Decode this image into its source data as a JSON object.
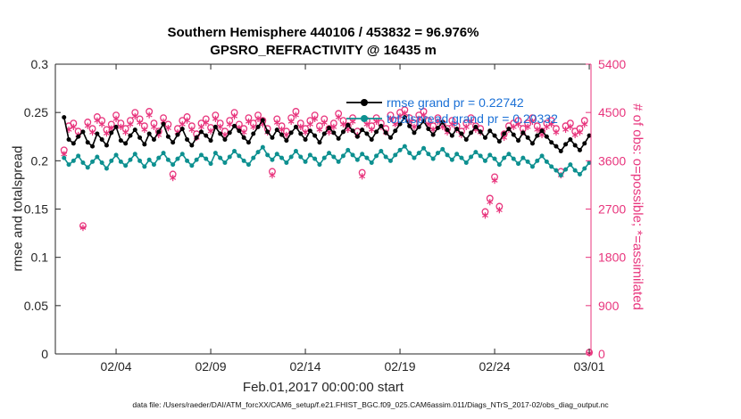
{
  "figure": {
    "title_line1": "Southern Hemisphere 440106 / 453832 = 96.976%",
    "title_line2": "GPSRO_REFRACTIVITY @ 16435 m",
    "caption": "data file: /Users/raeder/DAI/ATM_forcXX/CAM6_setup/f.e21.FHIST_BGC.f09_025.CAM6assim.011/Diags_NTrS_2017-02/obs_diag_output.nc"
  },
  "chart_data": {
    "type": "line",
    "title": "Southern Hemisphere 440106 / 453832 = 96.976%",
    "subtitle": "GPSRO_REFRACTIVITY @ 16435 m",
    "xlabel": "Feb.01,2017 00:00:00 start",
    "ylabel_left": "rmse and totalspread",
    "ylabel_right": "# of obs: o=possible; *=assimilated",
    "x_start_day": 0.25,
    "x_step_days": 0.25,
    "n_points": 112,
    "x_ticks": [
      {
        "day": 3,
        "label": "02/04"
      },
      {
        "day": 8,
        "label": "02/09"
      },
      {
        "day": 13,
        "label": "02/14"
      },
      {
        "day": 18,
        "label": "02/19"
      },
      {
        "day": 23,
        "label": "02/24"
      },
      {
        "day": 28,
        "label": "03/01"
      }
    ],
    "y_left": {
      "min": 0,
      "max": 0.3,
      "tick_values": [
        0,
        0.05,
        0.1,
        0.15,
        0.2,
        0.25,
        0.3
      ],
      "tick_labels": [
        "0",
        "0.05",
        "0.1",
        "0.15",
        "0.2",
        "0.25",
        "0.3"
      ]
    },
    "y_right": {
      "min": 0,
      "max": 5400,
      "tick_values": [
        0,
        900,
        1800,
        2700,
        3600,
        4500,
        5400
      ],
      "tick_labels": [
        "0",
        "900",
        "1800",
        "2700",
        "3600",
        "4500",
        "5400"
      ]
    },
    "legend_text_color": "#1a70d6",
    "legend": [
      {
        "label": "rmse grand pr = 0.22742",
        "color": "#000000"
      },
      {
        "label": "totalspread grand pr = 0.20332",
        "color": "#0d9090"
      }
    ],
    "series": [
      {
        "name": "rmse",
        "axis": "left",
        "color": "#000000",
        "marker": "dot",
        "values": [
          0.245,
          0.222,
          0.218,
          0.225,
          0.23,
          0.219,
          0.215,
          0.228,
          0.222,
          0.216,
          0.229,
          0.235,
          0.221,
          0.218,
          0.226,
          0.232,
          0.224,
          0.217,
          0.228,
          0.222,
          0.23,
          0.238,
          0.225,
          0.219,
          0.227,
          0.233,
          0.222,
          0.216,
          0.224,
          0.23,
          0.226,
          0.221,
          0.235,
          0.228,
          0.222,
          0.229,
          0.236,
          0.231,
          0.224,
          0.219,
          0.228,
          0.235,
          0.242,
          0.23,
          0.224,
          0.232,
          0.227,
          0.221,
          0.229,
          0.235,
          0.228,
          0.222,
          0.231,
          0.226,
          0.219,
          0.228,
          0.234,
          0.229,
          0.223,
          0.23,
          0.237,
          0.231,
          0.225,
          0.232,
          0.228,
          0.222,
          0.23,
          0.236,
          0.229,
          0.224,
          0.231,
          0.238,
          0.245,
          0.236,
          0.229,
          0.235,
          0.241,
          0.233,
          0.227,
          0.234,
          0.24,
          0.232,
          0.226,
          0.233,
          0.228,
          0.222,
          0.229,
          0.235,
          0.23,
          0.224,
          0.231,
          0.226,
          0.22,
          0.228,
          0.233,
          0.227,
          0.221,
          0.229,
          0.224,
          0.218,
          0.226,
          0.231,
          0.225,
          0.219,
          0.215,
          0.21,
          0.217,
          0.222,
          0.216,
          0.211,
          0.218,
          0.226
        ]
      },
      {
        "name": "totalspread",
        "axis": "left",
        "color": "#0d9090",
        "marker": "dot",
        "values": [
          0.203,
          0.196,
          0.2,
          0.205,
          0.198,
          0.193,
          0.199,
          0.204,
          0.198,
          0.192,
          0.2,
          0.206,
          0.199,
          0.195,
          0.201,
          0.207,
          0.2,
          0.194,
          0.201,
          0.196,
          0.203,
          0.208,
          0.201,
          0.196,
          0.202,
          0.207,
          0.2,
          0.195,
          0.201,
          0.206,
          0.202,
          0.197,
          0.208,
          0.203,
          0.198,
          0.204,
          0.21,
          0.205,
          0.2,
          0.196,
          0.203,
          0.209,
          0.214,
          0.206,
          0.201,
          0.207,
          0.203,
          0.198,
          0.204,
          0.21,
          0.204,
          0.199,
          0.206,
          0.202,
          0.196,
          0.203,
          0.208,
          0.204,
          0.199,
          0.205,
          0.211,
          0.206,
          0.201,
          0.207,
          0.203,
          0.198,
          0.205,
          0.21,
          0.204,
          0.2,
          0.206,
          0.211,
          0.215,
          0.208,
          0.203,
          0.208,
          0.213,
          0.207,
          0.202,
          0.208,
          0.212,
          0.206,
          0.201,
          0.207,
          0.203,
          0.198,
          0.204,
          0.209,
          0.205,
          0.2,
          0.206,
          0.202,
          0.196,
          0.203,
          0.207,
          0.202,
          0.197,
          0.203,
          0.199,
          0.194,
          0.2,
          0.205,
          0.199,
          0.194,
          0.19,
          0.185,
          0.191,
          0.196,
          0.19,
          0.186,
          0.192,
          0.198
        ]
      },
      {
        "name": "possible",
        "axis": "right",
        "color": "#e8357d",
        "marker": "circle",
        "values": [
          3800,
          4250,
          4300,
          4150,
          2390,
          4320,
          4200,
          4420,
          4350,
          4180,
          4280,
          4450,
          4300,
          4200,
          4350,
          4500,
          4380,
          4250,
          4520,
          4300,
          4150,
          4400,
          4280,
          3350,
          4200,
          4350,
          4420,
          4250,
          4100,
          4300,
          4380,
          4220,
          4450,
          4300,
          4150,
          4350,
          4500,
          4280,
          4200,
          4400,
          4300,
          4450,
          4350,
          4200,
          3400,
          4380,
          4250,
          4150,
          4400,
          4520,
          4300,
          4200,
          4350,
          4450,
          4250,
          4380,
          4200,
          4300,
          4480,
          4350,
          4250,
          4400,
          4150,
          3380,
          4350,
          4250,
          4400,
          4300,
          4200,
          4450,
          4350,
          4500,
          4550,
          4400,
          4300,
          4450,
          4520,
          4350,
          4250,
          4400,
          4300,
          4200,
          4350,
          4250,
          4150,
          4300,
          4400,
          4250,
          4200,
          2650,
          2900,
          3300,
          2750,
          4100,
          4250,
          4300,
          4350,
          4200,
          4300,
          4400,
          4250,
          4150,
          4300,
          4350,
          4200,
          3400,
          4250,
          4300,
          4150,
          4200,
          4350,
          30
        ]
      },
      {
        "name": "assimilated",
        "axis": "right",
        "color": "#e8357d",
        "marker": "asterisk",
        "values": [
          3720,
          4180,
          4230,
          4080,
          2350,
          4250,
          4130,
          4350,
          4280,
          4110,
          4200,
          4380,
          4230,
          4130,
          4280,
          4430,
          4310,
          4180,
          4450,
          4230,
          4080,
          4330,
          4210,
          3280,
          4130,
          4280,
          4350,
          4180,
          4030,
          4230,
          4310,
          4150,
          4380,
          4230,
          4080,
          4280,
          4430,
          4210,
          4130,
          4330,
          4230,
          4380,
          4280,
          4130,
          3330,
          4310,
          4180,
          4080,
          4330,
          4450,
          4230,
          4130,
          4280,
          4380,
          4180,
          4310,
          4130,
          4230,
          4410,
          4280,
          4180,
          4330,
          4080,
          3310,
          4280,
          4180,
          4330,
          4230,
          4130,
          4380,
          4280,
          4430,
          4480,
          4330,
          4230,
          4380,
          4450,
          4280,
          4180,
          4330,
          4230,
          4130,
          4280,
          4180,
          4080,
          4230,
          4330,
          4180,
          4130,
          2580,
          2830,
          3230,
          2680,
          4030,
          4180,
          4230,
          4280,
          4130,
          4230,
          4330,
          4180,
          4080,
          4230,
          4280,
          4130,
          3330,
          4180,
          4230,
          4080,
          4130,
          4280,
          10
        ]
      }
    ]
  }
}
